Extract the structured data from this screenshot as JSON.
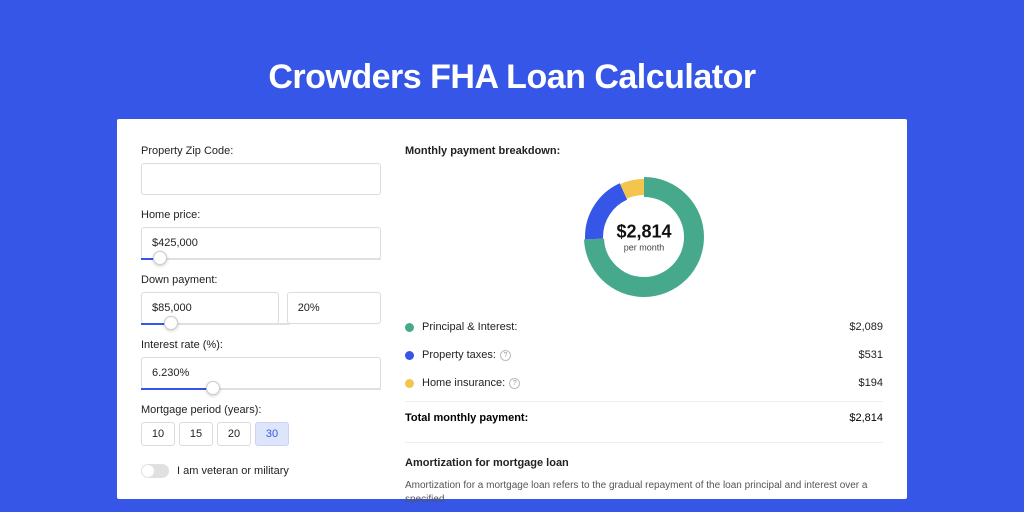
{
  "page_title": "Crowders FHA Loan Calculator",
  "colors": {
    "page_bg": "#3556e6",
    "panel_bg": "#ffffff",
    "accent": "#3556e6",
    "border": "#dcdcdc"
  },
  "form": {
    "zip": {
      "label": "Property Zip Code:",
      "value": ""
    },
    "home_price": {
      "label": "Home price:",
      "value": "$425,000",
      "slider_percent": 8
    },
    "down_payment": {
      "label": "Down payment:",
      "amount": "$85,000",
      "percent": "20%",
      "slider_percent": 20
    },
    "interest_rate": {
      "label": "Interest rate (%):",
      "value": "6.230%",
      "slider_percent": 30
    },
    "mortgage_period": {
      "label": "Mortgage period (years):",
      "options": [
        "10",
        "15",
        "20",
        "30"
      ],
      "selected": "30"
    },
    "veteran": {
      "label": "I am veteran or military",
      "checked": false
    }
  },
  "breakdown": {
    "heading": "Monthly payment breakdown:",
    "donut": {
      "amount": "$2,814",
      "sub": "per month",
      "segments": [
        {
          "name": "principal_interest",
          "value": 2089,
          "color": "#46a98b",
          "stroke_width": 20
        },
        {
          "name": "property_taxes",
          "value": 531,
          "color": "#3556e6",
          "stroke_width": 18
        },
        {
          "name": "home_insurance",
          "value": 194,
          "color": "#f3c54c",
          "stroke_width": 16
        }
      ]
    },
    "items": [
      {
        "dot_color": "#46a98b",
        "label": "Principal & Interest:",
        "value": "$2,089",
        "info": false
      },
      {
        "dot_color": "#3556e6",
        "label": "Property taxes:",
        "value": "$531",
        "info": true
      },
      {
        "dot_color": "#f3c54c",
        "label": "Home insurance:",
        "value": "$194",
        "info": true
      }
    ],
    "total": {
      "label": "Total monthly payment:",
      "value": "$2,814"
    }
  },
  "amortization": {
    "heading": "Amortization for mortgage loan",
    "text": "Amortization for a mortgage loan refers to the gradual repayment of the loan principal and interest over a specified"
  }
}
